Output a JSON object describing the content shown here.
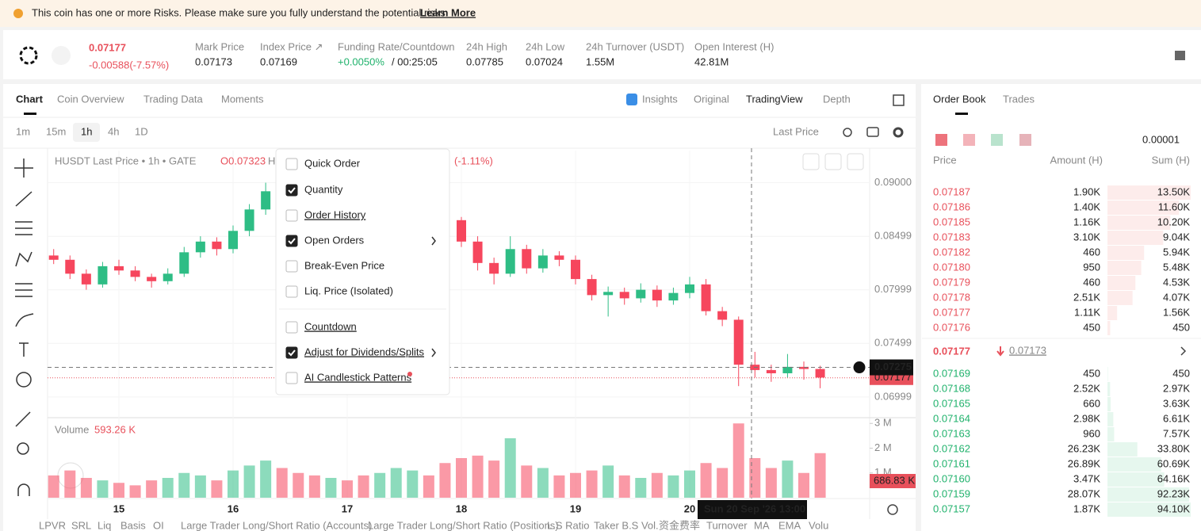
{
  "banner": {
    "text": "This coin has one or more Risks. Please make sure you fully understand the potential risks.",
    "link": "Learn More"
  },
  "ticker": {
    "price": "0.07177",
    "change": "-0.00588(-7.57%)",
    "stats": [
      {
        "label": "Mark Price",
        "value": "0.07173"
      },
      {
        "label": "Index Price ↗",
        "value": "0.07169"
      },
      {
        "label": "Funding Rate/Countdown",
        "value": "+0.0050%",
        "extra": "/ 00:25:05"
      },
      {
        "label": "24h High",
        "value": "0.07785"
      },
      {
        "label": "24h Low",
        "value": "0.07024"
      },
      {
        "label": "24h Turnover (USDT)",
        "value": "1.55M"
      },
      {
        "label": "Open Interest (H)",
        "value": "42.81M"
      }
    ]
  },
  "tabs": [
    "Chart",
    "Coin Overview",
    "Trading Data",
    "Moments"
  ],
  "view_tabs": [
    "Insights",
    "Original",
    "TradingView",
    "Depth"
  ],
  "intervals": [
    "1m",
    "15m",
    "1h",
    "4h",
    "1D"
  ],
  "price_type": "Last Price",
  "legend": {
    "symbol": "HUSDT Last Price • 1h • GATE",
    "open": "O0.07323",
    "high": "H",
    "change": "(-1.11%)",
    "volume": "Volume",
    "volume_value": "593.26 K"
  },
  "menu": [
    {
      "label": "Quick Order",
      "checked": false
    },
    {
      "label": "Quantity",
      "checked": true
    },
    {
      "label": "Order History",
      "checked": false
    },
    {
      "label": "Open Orders",
      "checked": true,
      "submenu": true
    },
    {
      "label": "Break-Even Price",
      "checked": false
    },
    {
      "label": "Liq. Price (Isolated)",
      "checked": false
    },
    {
      "label": "Countdown",
      "checked": false
    },
    {
      "label": "Adjust for Dividends/Splits",
      "checked": true,
      "submenu": true
    },
    {
      "label": "AI Candlestick Patterns",
      "checked": false
    }
  ],
  "chart_data": {
    "type": "candlestick",
    "candles": [
      [
        0.0832,
        0.0838,
        0.0824,
        0.0828
      ],
      [
        0.0828,
        0.0832,
        0.081,
        0.0815
      ],
      [
        0.0815,
        0.0819,
        0.08,
        0.0805
      ],
      [
        0.0805,
        0.0826,
        0.0802,
        0.0822
      ],
      [
        0.0822,
        0.0828,
        0.0814,
        0.0818
      ],
      [
        0.0818,
        0.0822,
        0.0808,
        0.0812
      ],
      [
        0.0812,
        0.0815,
        0.0802,
        0.0808
      ],
      [
        0.0808,
        0.082,
        0.0805,
        0.0815
      ],
      [
        0.0815,
        0.084,
        0.0812,
        0.0835
      ],
      [
        0.0835,
        0.085,
        0.083,
        0.0845
      ],
      [
        0.0845,
        0.0849,
        0.0832,
        0.0838
      ],
      [
        0.0838,
        0.086,
        0.0834,
        0.0855
      ],
      [
        0.0855,
        0.088,
        0.085,
        0.0875
      ],
      [
        0.0875,
        0.09,
        0.087,
        0.0892
      ],
      [
        0.0892,
        0.0898,
        0.0876,
        0.088
      ],
      [
        0.088,
        0.0886,
        0.087,
        0.0875
      ],
      [
        0.0875,
        0.088,
        0.0865,
        0.087
      ],
      [
        0.087,
        0.0884,
        0.0866,
        0.0878
      ],
      [
        0.0878,
        0.0882,
        0.0868,
        0.0872
      ],
      [
        0.0872,
        0.0876,
        0.0862,
        0.0868
      ],
      [
        0.0868,
        0.0885,
        0.0864,
        0.088
      ],
      [
        0.088,
        0.089,
        0.0876,
        0.0885
      ],
      [
        0.0885,
        0.0892,
        0.088,
        0.0888
      ],
      [
        0.0888,
        0.0891,
        0.0876,
        0.088
      ],
      [
        0.088,
        0.0884,
        0.086,
        0.0865
      ],
      [
        0.0865,
        0.0868,
        0.084,
        0.0845
      ],
      [
        0.0845,
        0.085,
        0.0818,
        0.0825
      ],
      [
        0.0825,
        0.083,
        0.0805,
        0.0815
      ],
      [
        0.0815,
        0.085,
        0.0812,
        0.0838
      ],
      [
        0.0838,
        0.0842,
        0.0815,
        0.082
      ],
      [
        0.082,
        0.0838,
        0.0816,
        0.0832
      ],
      [
        0.0832,
        0.0836,
        0.0822,
        0.0828
      ],
      [
        0.0828,
        0.0832,
        0.0805,
        0.081
      ],
      [
        0.081,
        0.0814,
        0.079,
        0.0795
      ],
      [
        0.0795,
        0.0803,
        0.0775,
        0.0798
      ],
      [
        0.0798,
        0.0802,
        0.0786,
        0.0792
      ],
      [
        0.0792,
        0.0806,
        0.0788,
        0.08
      ],
      [
        0.08,
        0.0804,
        0.0784,
        0.079
      ],
      [
        0.079,
        0.0802,
        0.0786,
        0.0797
      ],
      [
        0.0797,
        0.0812,
        0.0792,
        0.0805
      ],
      [
        0.0805,
        0.081,
        0.0776,
        0.078
      ],
      [
        0.078,
        0.0784,
        0.0766,
        0.0772
      ],
      [
        0.0772,
        0.0775,
        0.071,
        0.073
      ],
      [
        0.073,
        0.0742,
        0.0718,
        0.0725
      ],
      [
        0.0725,
        0.073,
        0.0714,
        0.0722
      ],
      [
        0.0722,
        0.074,
        0.0718,
        0.0728
      ],
      [
        0.0728,
        0.0733,
        0.0716,
        0.0726
      ],
      [
        0.0726,
        0.0729,
        0.0708,
        0.0718
      ]
    ],
    "volumes": [
      900000,
      1100000,
      800000,
      700000,
      600000,
      500000,
      700000,
      800000,
      1000000,
      900000,
      700000,
      1100000,
      1300000,
      1500000,
      1200000,
      1000000,
      900000,
      800000,
      700000,
      900000,
      1000000,
      1200000,
      1100000,
      900000,
      1400000,
      1600000,
      1700000,
      1500000,
      2400000,
      1300000,
      1200000,
      900000,
      1000000,
      1100000,
      1300000,
      900000,
      800000,
      1000000,
      900000,
      1100000,
      1400000,
      1200000,
      3000000,
      1600000,
      1200000,
      1500000,
      1000000,
      1800000
    ],
    "categories": [
      null,
      null,
      null,
      null,
      "15",
      null,
      null,
      null,
      null,
      null,
      null,
      "16",
      null,
      null,
      null,
      null,
      null,
      null,
      "17",
      null,
      null,
      null,
      null,
      null,
      null,
      "18",
      null,
      null,
      null,
      null,
      null,
      null,
      "19",
      null,
      null,
      null,
      null,
      null,
      null,
      "20",
      null,
      null,
      null,
      null,
      null,
      null,
      null,
      null
    ],
    "ylim": [
      0.0682,
      0.093
    ],
    "yticks": [
      {
        "value": 0.09,
        "label": "0.09000"
      },
      0.08499,
      0.07999,
      0.07499,
      0.06999
    ],
    "vol_ylim": [
      0,
      3200000
    ],
    "vol_yticks": [
      {
        "value": 3000000,
        "label": "3 M"
      },
      {
        "value": 2000000,
        "label": "2 M"
      },
      {
        "value": 1000000,
        "label": "1 M"
      }
    ],
    "last_price": 0.07177,
    "crosshair_price": 0.07275,
    "crosshair_time": "Sun 20 Sep '26   13:00",
    "last_volume": "686.83 K",
    "up_color": "#2ebd85",
    "down_color": "#f6465d"
  },
  "orderbook": {
    "tabs": [
      "Order Book",
      "Trades"
    ],
    "precision": "0.00001",
    "headers": [
      "Price",
      "Amount (H)",
      "Sum (H)"
    ],
    "asks": [
      [
        "0.07187",
        "1.90K",
        {
          "value": 13500,
          "label": "13.50K"
        }
      ],
      [
        "0.07186",
        "1.40K",
        {
          "value": 11600,
          "label": "11.60K"
        }
      ],
      [
        "0.07185",
        "1.16K",
        {
          "value": 10200,
          "label": "10.20K"
        }
      ],
      [
        "0.07183",
        "3.10K",
        {
          "value": 9040,
          "label": "9.04K"
        }
      ],
      [
        "0.07182",
        "460",
        {
          "value": 5940,
          "label": "5.94K"
        }
      ],
      [
        "0.07180",
        "950",
        {
          "value": 5480,
          "label": "5.48K"
        }
      ],
      [
        "0.07179",
        "460",
        {
          "value": 4530,
          "label": "4.53K"
        }
      ],
      [
        "0.07178",
        "2.51K",
        {
          "value": 4070,
          "label": "4.07K"
        }
      ],
      [
        "0.07177",
        "1.11K",
        {
          "value": 1560,
          "label": "1.56K"
        }
      ],
      [
        "0.07176",
        "450",
        450
      ]
    ],
    "mid_price": "0.07177",
    "mark_price": "0.07173",
    "bids": [
      [
        "0.07169",
        "450",
        450
      ],
      [
        "0.07168",
        "2.52K",
        {
          "value": 2970,
          "label": "2.97K"
        }
      ],
      [
        "0.07165",
        "660",
        {
          "value": 3630,
          "label": "3.63K"
        }
      ],
      [
        "0.07164",
        "2.98K",
        {
          "value": 6610,
          "label": "6.61K"
        }
      ],
      [
        "0.07163",
        "960",
        {
          "value": 7570,
          "label": "7.57K"
        }
      ],
      [
        "0.07162",
        "26.23K",
        {
          "value": 33800,
          "label": "33.80K"
        }
      ],
      [
        "0.07161",
        "26.89K",
        {
          "value": 60690,
          "label": "60.69K"
        }
      ],
      [
        "0.07160",
        "3.47K",
        {
          "value": 64160,
          "label": "64.16K"
        }
      ],
      [
        "0.07159",
        "28.07K",
        {
          "value": 92230,
          "label": "92.23K"
        }
      ],
      [
        "0.07157",
        "1.87K",
        {
          "value": 94100,
          "label": "94.10K"
        }
      ]
    ]
  },
  "bottom_bar": [
    "LPVR",
    "SRL",
    "Liq",
    "Basis",
    "OI",
    "Large Trader Long/Short Ratio (Accounts)",
    "Large Trader Long/Short Ratio (Positions)",
    "L.S Ratio",
    "Taker B.S Vol.",
    "资金费率",
    "Turnover",
    "MA",
    "EMA",
    "Volu"
  ]
}
